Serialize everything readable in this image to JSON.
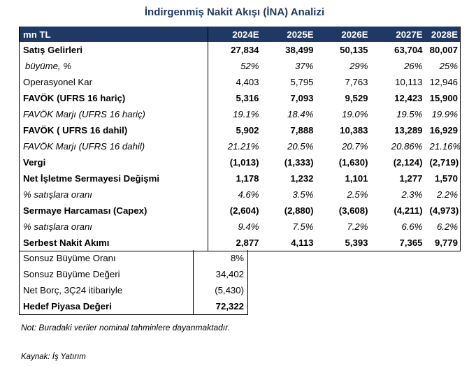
{
  "title": "İndirgenmiş Nakit Akışı (İNA) Analizi",
  "header": {
    "unit": "mn TL",
    "years": [
      "2024E",
      "2025E",
      "2026E",
      "2027E",
      "2028E"
    ]
  },
  "rows": [
    {
      "label": "Satış Gelirleri",
      "values": [
        "27,834",
        "38,499",
        "50,135",
        "63,704",
        "80,007"
      ]
    },
    {
      "label": "büyüme, %",
      "values": [
        "52%",
        "37%",
        "29%",
        "26%",
        "25%"
      ]
    },
    {
      "label": "Operasyonel Kar",
      "values": [
        "4,403",
        "5,795",
        "7,763",
        "10,113",
        "12,946"
      ]
    },
    {
      "label": "FAVÖK (UFRS 16 hariç)",
      "values": [
        "5,316",
        "7,093",
        "9,529",
        "12,423",
        "15,900"
      ]
    },
    {
      "label": "FAVÖK Marjı (UFRS 16 hariç)",
      "values": [
        "19.1%",
        "18.4%",
        "19.0%",
        "19.5%",
        "19.9%"
      ]
    },
    {
      "label": "FAVÖK ( UFRS 16 dahil)",
      "values": [
        "5,902",
        "7,888",
        "10,383",
        "13,289",
        "16,929"
      ]
    },
    {
      "label": "FAVÖK Marjı (UFRS 16 dahil)",
      "values": [
        "21.21%",
        "20.5%",
        "20.7%",
        "20.86%",
        "21.16%"
      ]
    },
    {
      "label": "Vergi",
      "values": [
        "(1,013)",
        "(1,333)",
        "(1,630)",
        "(2,124)",
        "(2,719)"
      ]
    },
    {
      "label": "Net İşletme Sermayesi Değişmi",
      "values": [
        "1,178",
        "1,232",
        "1,101",
        "1,277",
        "1,570"
      ]
    },
    {
      "label": "% satışlara oranı",
      "values": [
        "4.6%",
        "3.5%",
        "2.5%",
        "2.3%",
        "2.2%"
      ]
    },
    {
      "label": "Sermaye Harcaması (Capex)",
      "values": [
        "(2,604)",
        "(2,880)",
        "(3,608)",
        "(4,211)",
        "(4,973)"
      ]
    },
    {
      "label": "% satışlara oranı",
      "values": [
        "9.4%",
        "7.5%",
        "7.2%",
        "6.6%",
        "6.2%"
      ]
    },
    {
      "label": "Serbest Nakit Akımı",
      "values": [
        "2,877",
        "4,113",
        "5,393",
        "7,365",
        "9,779"
      ]
    }
  ],
  "valuation": [
    {
      "label": "Sonsuz Büyüme Oranı",
      "value": "8%"
    },
    {
      "label": "Sonsuz Büyüme Değeri",
      "value": "34,402"
    },
    {
      "label": "Net Borç, 3Ç24 itibariyle",
      "value": "(5,430)"
    },
    {
      "label": "Hedef Piyasa Değeri",
      "value": "72,322"
    }
  ],
  "note": "Not: Buradaki veriler nominal tahminlere dayanmaktadır.",
  "source": "Kaynak: İş Yatırım"
}
